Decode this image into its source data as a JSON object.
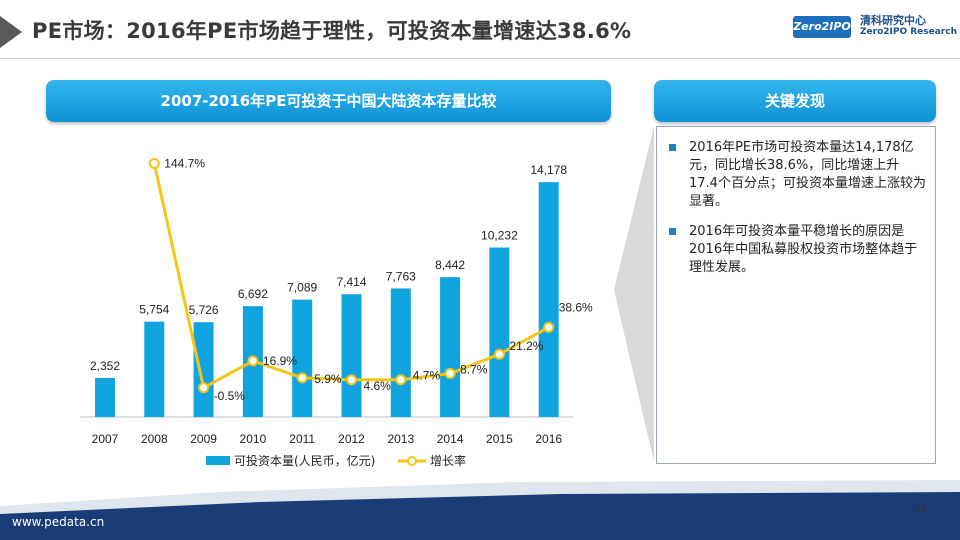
{
  "header": {
    "title": "PE市场：2016年PE市场趋于理性，可投资本量增速达38.6%",
    "logo_box_text": "Zero2IPO",
    "logo_cn": "清科研究中心",
    "logo_en": "Zero2IPO Research"
  },
  "chart_section": {
    "banner": "2007-2016年PE可投资于中国大陆资本存量比较"
  },
  "findings_section": {
    "banner": "关键发现",
    "items": [
      "2016年PE市场可投资本量达14,178亿元，同比增长38.6%，同比增速上升17.4个百分点；可投资本量增速上涨较为显著。",
      "2016年可投资本量平稳增长的原因是2016年中国私募股权投资市场整体趋于理性发展。"
    ]
  },
  "footer": {
    "url": "www.pedata.cn",
    "page_number": "24"
  },
  "colors": {
    "bar": "#10a3e0",
    "line": "#f5c518",
    "banner": "#1ea4e4",
    "footer_band": "#1a3d78"
  },
  "chart_data": {
    "type": "bar",
    "categories": [
      "2007",
      "2008",
      "2009",
      "2010",
      "2011",
      "2012",
      "2013",
      "2014",
      "2015",
      "2016"
    ],
    "series": [
      {
        "name": "可投资本量(人民币，亿元)",
        "type": "bar",
        "values": [
          2352,
          5754,
          5726,
          6692,
          7089,
          7414,
          7763,
          8442,
          10232,
          14178
        ],
        "labels": [
          "2,352",
          "5,754",
          "5,726",
          "6,692",
          "7,089",
          "7,414",
          "7,763",
          "8,442",
          "10,232",
          "14,178"
        ]
      },
      {
        "name": "增长率",
        "type": "line",
        "values": [
          null,
          144.7,
          -0.5,
          16.9,
          5.9,
          4.6,
          4.7,
          8.7,
          21.2,
          38.6
        ],
        "labels": [
          null,
          "144.7%",
          "-0.5%",
          "16.9%",
          "5.9%",
          "4.6%",
          "4.7%",
          "8.7%",
          "21.2%",
          "38.6%"
        ]
      }
    ],
    "legend_position": "bottom",
    "grid": false
  }
}
